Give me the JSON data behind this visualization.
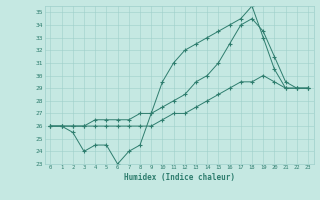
{
  "xlabel": "Humidex (Indice chaleur)",
  "xlim": [
    -0.5,
    23.5
  ],
  "ylim": [
    23,
    35.5
  ],
  "yticks": [
    23,
    24,
    25,
    26,
    27,
    28,
    29,
    30,
    31,
    32,
    33,
    34,
    35
  ],
  "xticks": [
    0,
    1,
    2,
    3,
    4,
    5,
    6,
    7,
    8,
    9,
    10,
    11,
    12,
    13,
    14,
    15,
    16,
    17,
    18,
    19,
    20,
    21,
    22,
    23
  ],
  "line_color": "#2e7d6e",
  "bg_color": "#c5e8e2",
  "grid_color": "#9ecfca",
  "line1_x": [
    0,
    1,
    2,
    3,
    4,
    5,
    6,
    7,
    8,
    9,
    10,
    11,
    12,
    13,
    14,
    15,
    16,
    17,
    18,
    19,
    20,
    21,
    22,
    23
  ],
  "line1_y": [
    26.0,
    26.0,
    25.5,
    24.0,
    24.5,
    24.5,
    23.0,
    24.0,
    24.5,
    27.0,
    29.5,
    31.0,
    32.0,
    32.5,
    33.0,
    33.5,
    34.0,
    34.5,
    35.5,
    33.0,
    30.5,
    29.0,
    29.0,
    29.0
  ],
  "line2_x": [
    0,
    1,
    2,
    3,
    4,
    5,
    6,
    7,
    8,
    9,
    10,
    11,
    12,
    13,
    14,
    15,
    16,
    17,
    18,
    19,
    20,
    21,
    22,
    23
  ],
  "line2_y": [
    26.0,
    26.0,
    26.0,
    26.0,
    26.5,
    26.5,
    26.5,
    26.5,
    27.0,
    27.0,
    27.5,
    28.0,
    28.5,
    29.5,
    30.0,
    31.0,
    32.5,
    34.0,
    34.5,
    33.5,
    31.5,
    29.5,
    29.0,
    29.0
  ],
  "line3_x": [
    0,
    1,
    2,
    3,
    4,
    5,
    6,
    7,
    8,
    9,
    10,
    11,
    12,
    13,
    14,
    15,
    16,
    17,
    18,
    19,
    20,
    21,
    22,
    23
  ],
  "line3_y": [
    26.0,
    26.0,
    26.0,
    26.0,
    26.0,
    26.0,
    26.0,
    26.0,
    26.0,
    26.0,
    26.5,
    27.0,
    27.0,
    27.5,
    28.0,
    28.5,
    29.0,
    29.5,
    29.5,
    30.0,
    29.5,
    29.0,
    29.0,
    29.0
  ]
}
